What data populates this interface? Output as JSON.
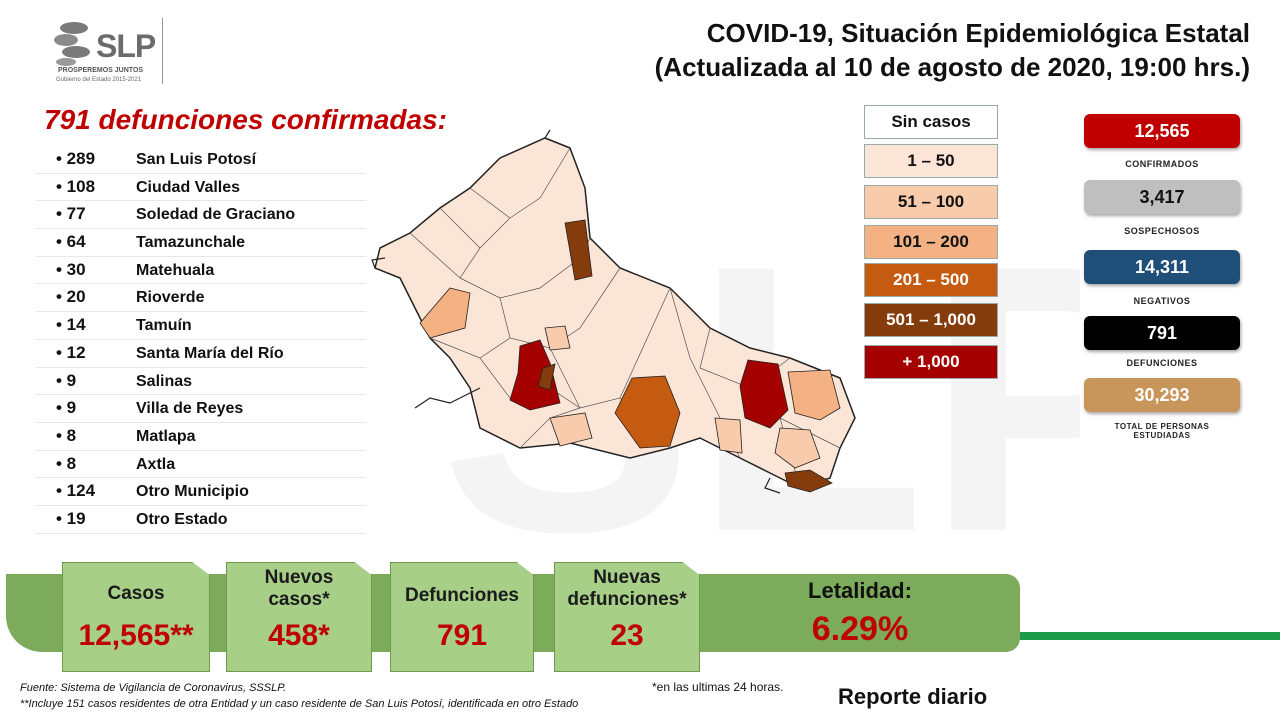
{
  "header": {
    "logo_text": "SLP",
    "logo_tagline": "PROSPEREMOS JUNTOS",
    "logo_sub": "Gobierno del Estado 2015-2021",
    "title_line1": "COVID-19, Situación Epidemiológica Estatal",
    "title_line2": "(Actualizada al 10 de agosto de 2020, 19:00 hrs.)"
  },
  "deaths": {
    "heading": "791 defunciones confirmadas:",
    "rows": [
      {
        "count": "• 289",
        "name": "San Luis Potosí"
      },
      {
        "count": "• 108",
        "name": "Ciudad Valles"
      },
      {
        "count": "• 77",
        "name": "Soledad de Graciano"
      },
      {
        "count": "• 64",
        "name": "Tamazunchale"
      },
      {
        "count": "• 30",
        "name": "Matehuala"
      },
      {
        "count": "• 20",
        "name": "Rioverde"
      },
      {
        "count": "• 14",
        "name": "Tamuín"
      },
      {
        "count": "• 12",
        "name": "Santa María del Río"
      },
      {
        "count": "• 9",
        "name": "Salinas"
      },
      {
        "count": "• 9",
        "name": "Villa de Reyes"
      },
      {
        "count": "• 8",
        "name": "Matlapa"
      },
      {
        "count": "• 8",
        "name": "Axtla"
      },
      {
        "count": "• 124",
        "name": "Otro Municipio"
      },
      {
        "count": "• 19",
        "name": "Otro Estado"
      }
    ]
  },
  "legend": [
    {
      "label": "Sin casos",
      "color": "#ffffff"
    },
    {
      "label": "1 – 50",
      "color": "#fbe5d6"
    },
    {
      "label": "51 – 100",
      "color": "#f8cbad"
    },
    {
      "label": "101 – 200",
      "color": "#f4b183"
    },
    {
      "label": "201 – 500",
      "color": "#c55a11"
    },
    {
      "label": "501 – 1,000",
      "color": "#843c0c"
    },
    {
      "label": "+ 1,000",
      "color": "#a50000"
    }
  ],
  "stats": [
    {
      "value": "12,565",
      "label": "CONFIRMADOS",
      "color": "#c00000",
      "text_color": "#ffffff"
    },
    {
      "value": "3,417",
      "label": "SOSPECHOSOS",
      "color": "#bfbfbf",
      "text_color": "#111111"
    },
    {
      "value": "14,311",
      "label": "NEGATIVOS",
      "color": "#1f4e79",
      "text_color": "#ffffff"
    },
    {
      "value": "791",
      "label": "DEFUNCIONES",
      "color": "#000000",
      "text_color": "#ffffff"
    },
    {
      "value": "30,293",
      "label": "TOTAL DE PERSONAS ESTUDIADAS",
      "color": "#c8955a",
      "text_color": "#ffffff"
    }
  ],
  "banner": {
    "casos_label": "Casos",
    "casos_value": "12,565**",
    "nuevos_casos_label": "Nuevos casos*",
    "nuevos_casos_value": "458*",
    "defunciones_label": "Defunciones",
    "defunciones_value": "791",
    "nuevas_defunciones_label": "Nuevas defunciones*",
    "nuevas_defunciones_value": "23",
    "letalidad_label": "Letalidad:",
    "letalidad_value": "6.29%"
  },
  "footer": {
    "source": "Fuente: Sistema de Vigilancia  de Coronavirus, SSSLP.",
    "note_double": "**Incluye 151 casos residentes de otra Entidad  y un caso residente de San Luis Potosí, identificada  en otro Estado",
    "note_single": "*en las ultimas 24 horas.",
    "report": "Reporte diario"
  }
}
